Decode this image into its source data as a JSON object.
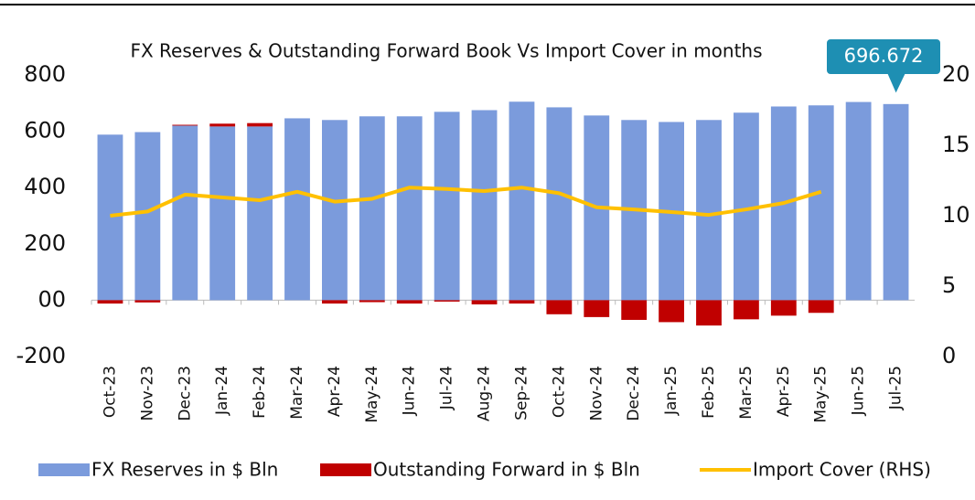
{
  "chart_data": {
    "type": "bar-line",
    "title": "FX Reserves & Outstanding Forward Book Vs Import Cover in months",
    "categories": [
      "Oct-23",
      "Nov-23",
      "Dec-23",
      "Jan-24",
      "Feb-24",
      "Mar-24",
      "Apr-24",
      "May-24",
      "Jun-24",
      "Jul-24",
      "Aug-24",
      "Sep-24",
      "Oct-24",
      "Nov-24",
      "Dec-24",
      "Jan-25",
      "Feb-25",
      "Mar-25",
      "Apr-25",
      "May-25",
      "Jun-25",
      "Jul-25"
    ],
    "series": [
      {
        "name": "FX Reserves in $ Bln",
        "type": "bar",
        "color": "#7b9bdc",
        "values": [
          588,
          597,
          620,
          617,
          617,
          646,
          640,
          653,
          653,
          669,
          675,
          705,
          685,
          656,
          640,
          633,
          640,
          666,
          688,
          692,
          704,
          696.672
        ]
      },
      {
        "name": "Outstanding Forward in $ Bln",
        "type": "bar",
        "color": "#c00000",
        "values": [
          -12,
          -8,
          3,
          10,
          12,
          0,
          -12,
          -7,
          -12,
          -5,
          -15,
          -12,
          -50,
          -60,
          -70,
          -78,
          -90,
          -68,
          -55,
          -45,
          null,
          null
        ]
      },
      {
        "name": "Import Cover (RHS)",
        "type": "line",
        "axis": "y2",
        "color": "#ffc000",
        "values": [
          10.0,
          10.3,
          11.5,
          11.3,
          11.1,
          11.7,
          11.0,
          11.2,
          12.0,
          11.9,
          11.75,
          12.0,
          11.6,
          10.6,
          10.45,
          10.26,
          10.06,
          10.45,
          10.9,
          11.7,
          null,
          null
        ]
      }
    ],
    "ylim": [
      -200,
      800
    ],
    "yticks": [
      -200,
      {
        "value": 0,
        "label": "00"
      },
      200,
      400,
      600,
      800
    ],
    "y2lim": [
      0,
      20
    ],
    "y2ticks": [
      0,
      5,
      10,
      15,
      20
    ],
    "callout": {
      "series": 0,
      "index": 21,
      "color": "#1e8fb3"
    }
  }
}
